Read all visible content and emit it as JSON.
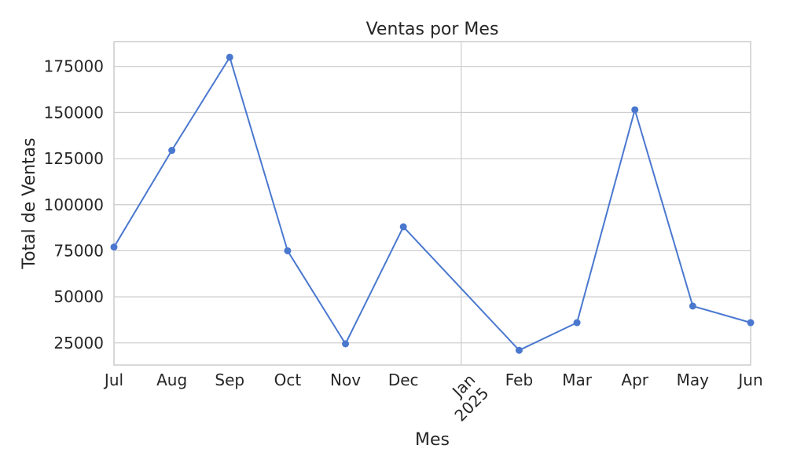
{
  "chart_data": {
    "type": "line",
    "title": "Ventas por Mes",
    "xlabel": "Mes",
    "ylabel": "Total de Ventas",
    "x": [
      "2024-07",
      "2024-08",
      "2024-09",
      "2024-10",
      "2024-11",
      "2024-12",
      "2025-02",
      "2025-03",
      "2025-04",
      "2025-05",
      "2025-06"
    ],
    "values": [
      77000,
      129500,
      180000,
      75000,
      24500,
      88000,
      21000,
      36000,
      151500,
      45000,
      36000
    ],
    "x_tick_labels": [
      "Jul",
      "Aug",
      "Sep",
      "Oct",
      "Nov",
      "Dec",
      "Jan\n2025",
      "Feb",
      "Mar",
      "Apr",
      "May",
      "Jun"
    ],
    "y_ticks": [
      25000,
      50000,
      75000,
      100000,
      125000,
      150000,
      175000
    ],
    "ylim": [
      13000,
      188500
    ],
    "grid": true,
    "series_color": "#4a78cf",
    "grid_color": "#cccccc"
  }
}
